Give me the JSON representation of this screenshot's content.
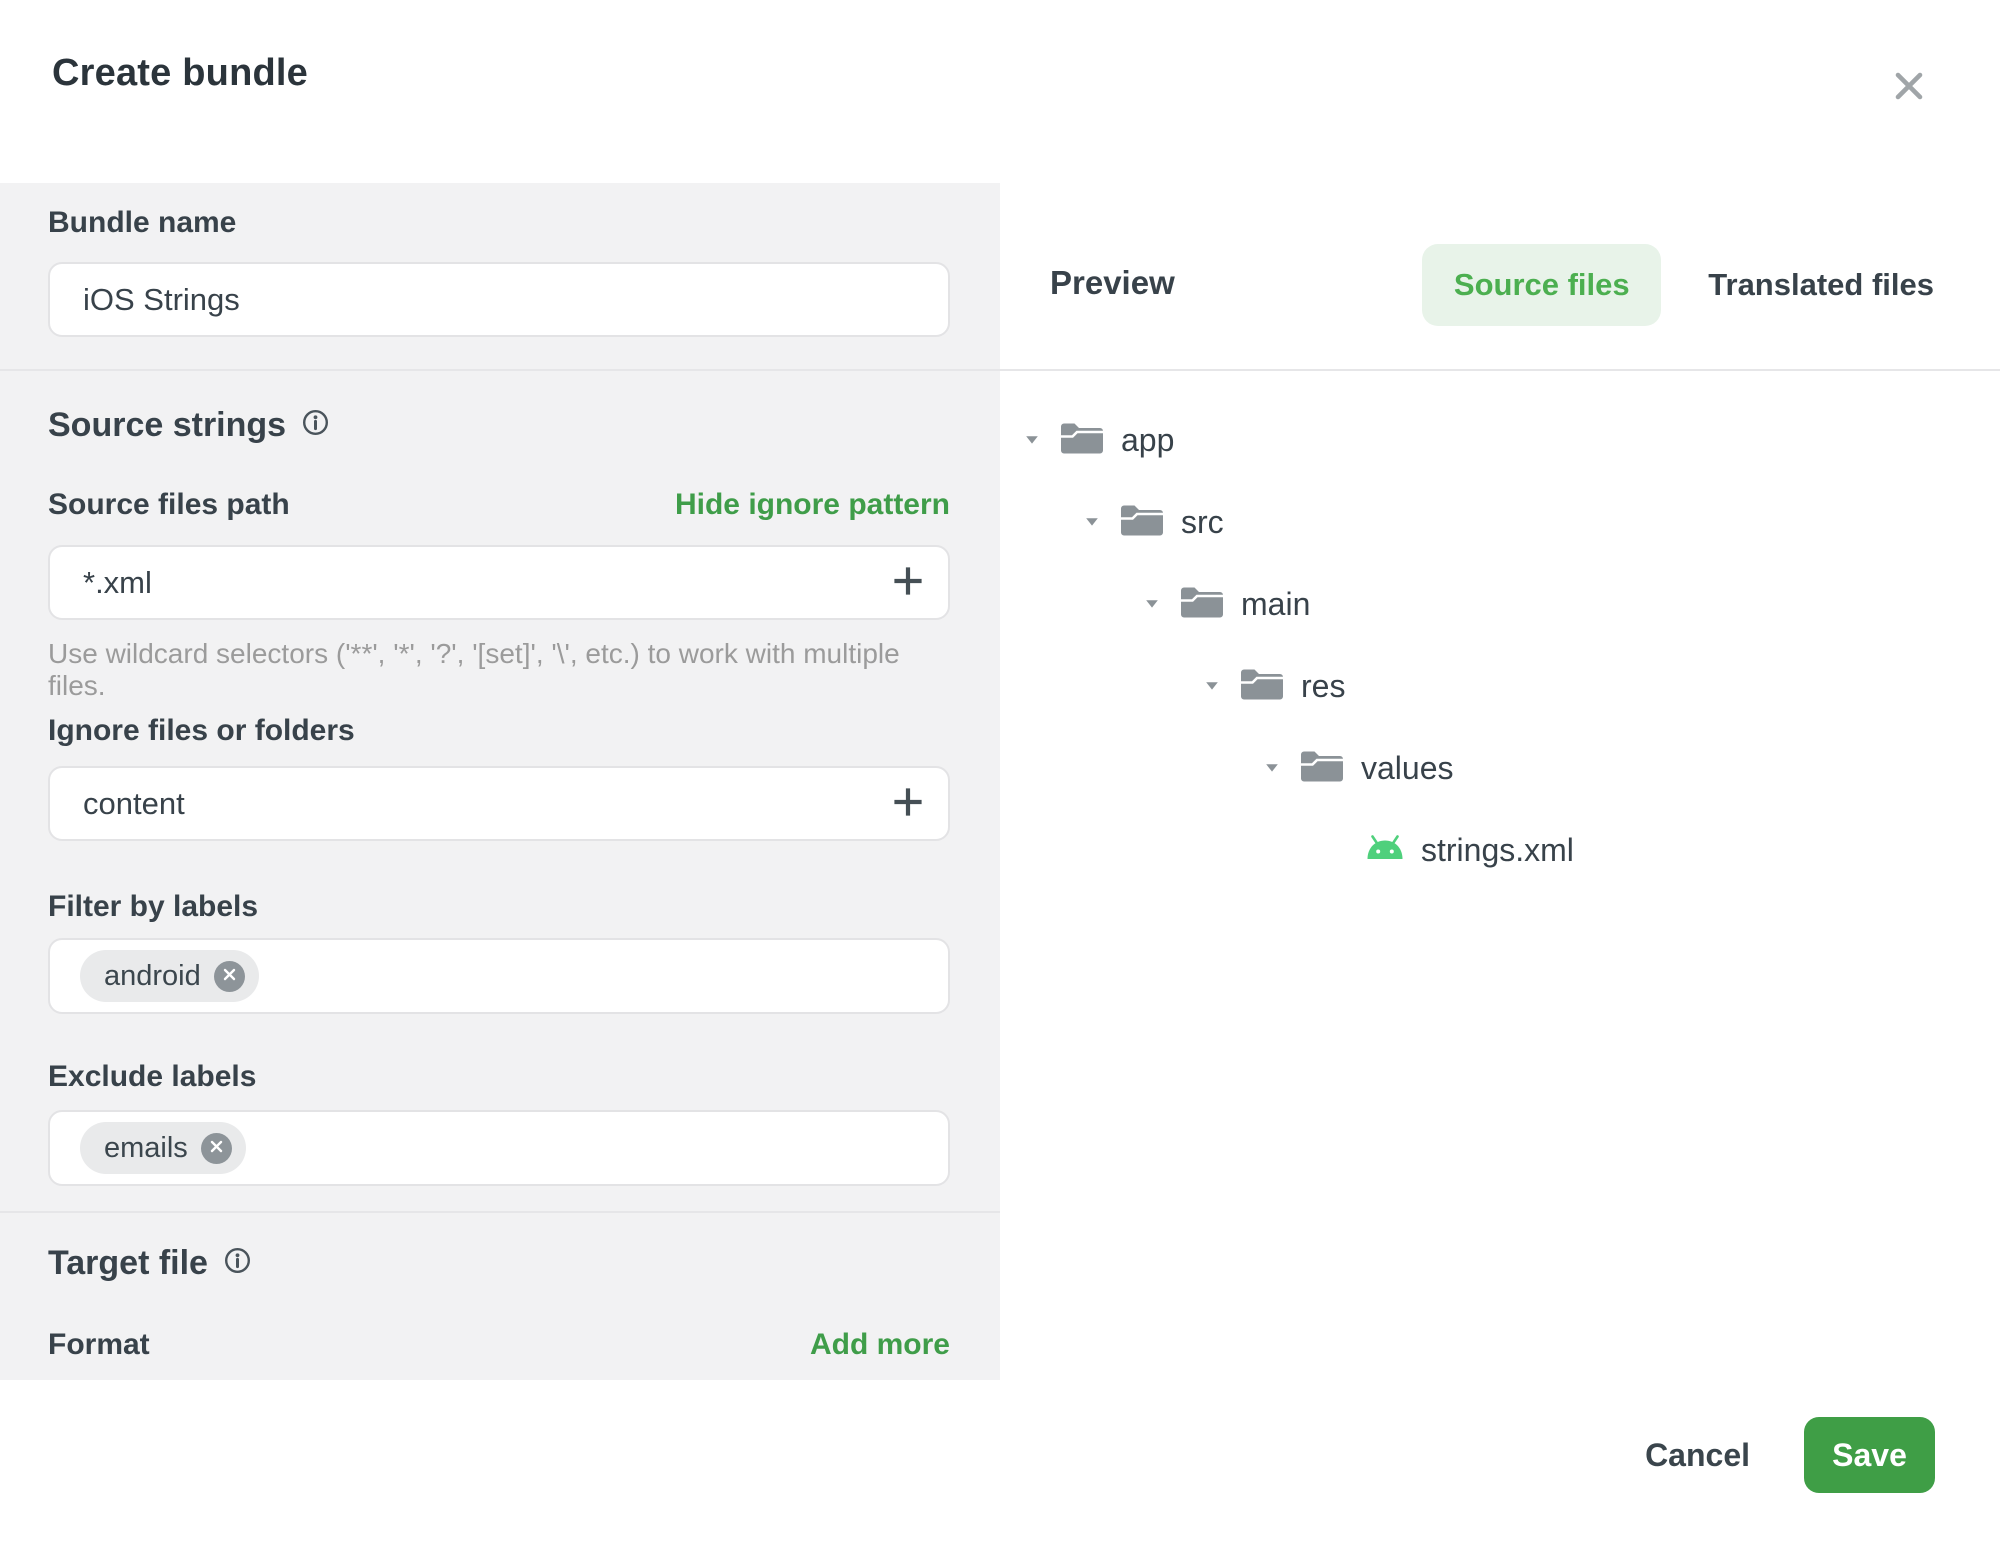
{
  "dialog": {
    "title": "Create bundle"
  },
  "form": {
    "bundle_name": {
      "label": "Bundle name",
      "value": "iOS Strings"
    },
    "source_strings": {
      "heading": "Source strings",
      "source_files_path": {
        "label": "Source files path",
        "toggle_link": "Hide ignore pattern",
        "value": "*.xml",
        "helper": "Use wildcard selectors ('**', '*', '?', '[set]', '\\', etc.) to work with multiple files."
      },
      "ignore": {
        "label": "Ignore files or folders",
        "value": "content"
      },
      "filter_labels": {
        "label": "Filter by labels",
        "tags": [
          "android"
        ]
      },
      "exclude_labels": {
        "label": "Exclude labels",
        "tags": [
          "emails"
        ]
      }
    },
    "target_file": {
      "heading": "Target file",
      "format_label": "Format",
      "add_more_link": "Add more"
    }
  },
  "preview": {
    "heading": "Preview",
    "tabs": [
      {
        "label": "Source files",
        "active": true
      },
      {
        "label": "Translated files",
        "active": false
      }
    ],
    "tree": [
      {
        "label": "app",
        "level": 0,
        "type": "folder"
      },
      {
        "label": "src",
        "level": 1,
        "type": "folder"
      },
      {
        "label": "main",
        "level": 2,
        "type": "folder"
      },
      {
        "label": "res",
        "level": 3,
        "type": "folder"
      },
      {
        "label": "values",
        "level": 4,
        "type": "folder"
      },
      {
        "label": "strings.xml",
        "level": 5,
        "type": "android-file"
      }
    ]
  },
  "footer": {
    "cancel": "Cancel",
    "save": "Save"
  },
  "colors": {
    "accent_green": "#3f9d49",
    "save_green": "#3f9e46",
    "tab_active_text": "#4caf50",
    "tab_active_bg": "#e8f3e9",
    "android_green": "#4fd07c",
    "folder_gray": "#8b9297",
    "panel_gray": "#f2f2f3",
    "text_dark": "#38424a",
    "helper_gray": "#9b9b9b"
  }
}
